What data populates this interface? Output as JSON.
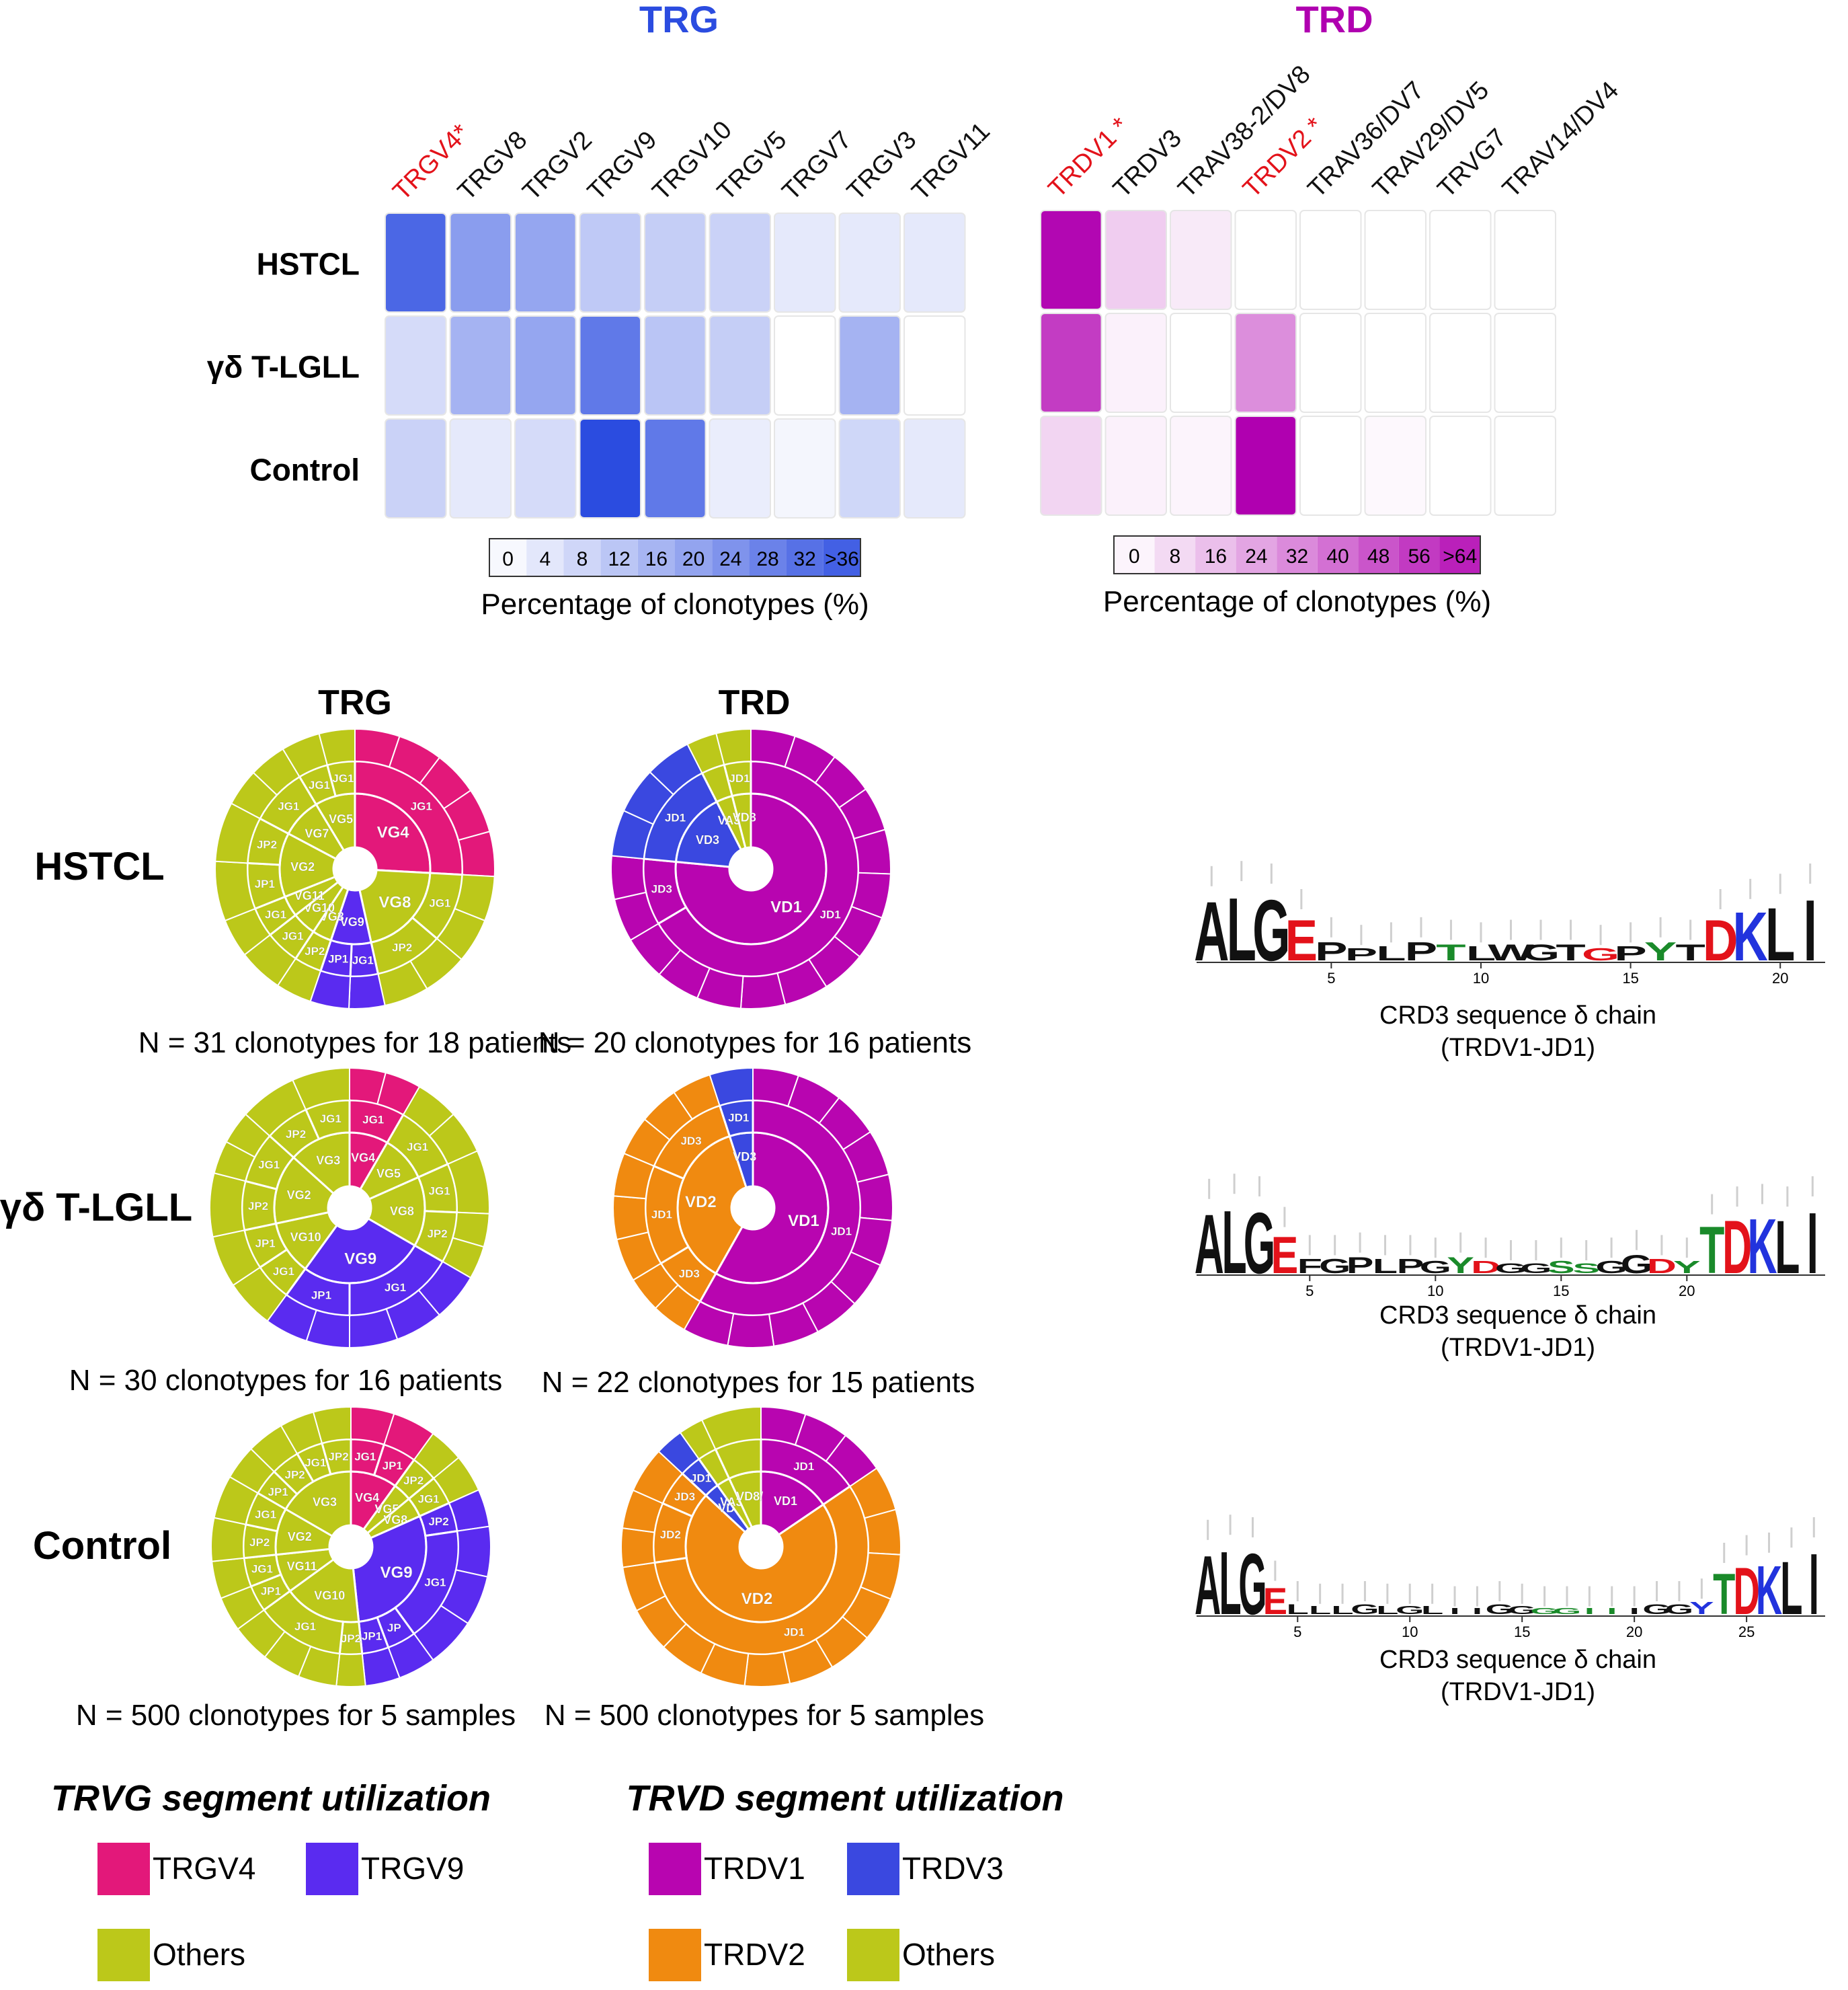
{
  "colors": {
    "trg_accent": "#2b4ce0",
    "trd_accent": "#b000b0",
    "highlight_label": "#e3121a",
    "TRGV4": "#e3187a",
    "TRGV9": "#5a2bf0",
    "TRDV1": "#b805b0",
    "TRDV2": "#f08a10",
    "TRDV3": "#3a48e0",
    "Others": "#bcc81a"
  },
  "heatmaps": [
    {
      "title": "TRG",
      "rows": [
        "HSTCL",
        "γδ T-LGLL",
        "Control"
      ],
      "columns": [
        "TRGV4*",
        "TRGV8",
        "TRGV2",
        "TRGV9",
        "TRGV10",
        "TRGV5",
        "TRGV7",
        "TRGV3",
        "TRGV11"
      ],
      "highlight_columns": [
        0
      ],
      "values": [
        [
          34,
          22,
          20,
          12,
          11,
          10,
          5,
          5,
          5
        ],
        [
          8,
          17,
          20,
          30,
          13,
          11,
          0,
          17,
          0
        ],
        [
          10,
          5,
          8,
          40,
          30,
          4,
          2,
          9,
          5
        ]
      ],
      "scale_max": 40,
      "legend_ticks": [
        "0",
        "4",
        "8",
        "12",
        "16",
        "20",
        "24",
        "28",
        "32",
        ">36"
      ],
      "legend_caption": "Percentage of clonotypes (%)"
    },
    {
      "title": "TRD",
      "rows": [
        "HSTCL",
        "γδ T-LGLL",
        "Control"
      ],
      "columns": [
        "TRDV1 *",
        "TRDV3",
        "TRAV38-2/DV8",
        "TRDV2 *",
        "TRAV36/DV7",
        "TRAV29/DV5",
        "TRVG7",
        "TRAV14/DV4"
      ],
      "highlight_columns": [
        0,
        3
      ],
      "values": [
        [
          70,
          14,
          6,
          0,
          0,
          0,
          0,
          0
        ],
        [
          55,
          4,
          0,
          32,
          0,
          0,
          0,
          0
        ],
        [
          12,
          4,
          3,
          72,
          0,
          2,
          0,
          0
        ]
      ],
      "scale_max": 72,
      "legend_ticks": [
        "0",
        "8",
        "16",
        "24",
        "32",
        "40",
        "48",
        "56",
        ">64"
      ],
      "legend_caption": "Percentage of clonotypes (%)"
    }
  ],
  "chart_data": [
    {
      "type": "heatmap",
      "title": "TRG",
      "rows": [
        "HSTCL",
        "γδ T-LGLL",
        "Control"
      ],
      "columns": [
        "TRGV4",
        "TRGV8",
        "TRGV2",
        "TRGV9",
        "TRGV10",
        "TRGV5",
        "TRGV7",
        "TRGV3",
        "TRGV11"
      ],
      "unit": "Percentage of clonotypes (%)",
      "range": [
        0,
        36
      ]
    },
    {
      "type": "heatmap",
      "title": "TRD",
      "rows": [
        "HSTCL",
        "γδ T-LGLL",
        "Control"
      ],
      "columns": [
        "TRDV1",
        "TRDV3",
        "TRAV38-2/DV8",
        "TRDV2",
        "TRAV36/DV7",
        "TRAV29/DV5",
        "TRVG7",
        "TRAV14/DV4"
      ],
      "unit": "Percentage of clonotypes (%)",
      "range": [
        0,
        64
      ]
    },
    {
      "type": "pie",
      "title": "Segment utilization sunbursts",
      "groups": [
        "HSTCL",
        "γδ T-LGLL",
        "Control"
      ],
      "panels": [
        "TRG",
        "TRD"
      ]
    }
  ],
  "sunburst_headers": {
    "trg": "TRG",
    "trd": "TRD"
  },
  "row_labels": [
    "HSTCL",
    "γδ T-LGLL",
    "Control"
  ],
  "sunbursts": [
    {
      "id": "trg-hstcl",
      "caption": "N = 31 clonotypes for 18 patients",
      "segments": [
        {
          "label": "VG4",
          "color": "TRGV4",
          "value": 7.5,
          "children": [
            {
              "label": "JG1",
              "value": 7.5
            }
          ]
        },
        {
          "label": "VG8",
          "color": "Others",
          "value": 6,
          "children": [
            {
              "label": "JG1",
              "value": 3
            },
            {
              "label": "JP2",
              "value": 3
            }
          ]
        },
        {
          "label": "VG9",
          "color": "TRGV9",
          "value": 2.5,
          "children": [
            {
              "label": "JG1",
              "value": 1.2
            },
            {
              "label": "JP1",
              "value": 1.3
            }
          ]
        },
        {
          "label": "VG3",
          "color": "Others",
          "value": 1.2,
          "children": [
            {
              "label": "JP2",
              "value": 1.2
            }
          ]
        },
        {
          "label": "VG10",
          "color": "Others",
          "value": 1.5,
          "children": [
            {
              "label": "JG1",
              "value": 1.5
            }
          ]
        },
        {
          "label": "VG11",
          "color": "Others",
          "value": 1.3,
          "children": [
            {
              "label": "JG1",
              "value": 1.3
            }
          ]
        },
        {
          "label": "VG2",
          "color": "Others",
          "value": 4,
          "children": [
            {
              "label": "JP1",
              "value": 2
            },
            {
              "label": "JP2",
              "value": 2
            }
          ]
        },
        {
          "label": "VG7",
          "color": "Others",
          "value": 2.5,
          "children": [
            {
              "label": "JG1",
              "value": 2.5
            }
          ]
        },
        {
          "label": "VG5",
          "color": "Others",
          "value": 2.5,
          "children": [
            {
              "label": "JG1",
              "value": 1.3
            },
            {
              "label": "JG1",
              "value": 1.2
            }
          ]
        }
      ]
    },
    {
      "id": "trd-hstcl",
      "caption": "N = 20 clonotypes for 16 patients",
      "segments": [
        {
          "label": "VD1",
          "color": "TRDV1",
          "value": 15.3,
          "children": [
            {
              "label": "JD1",
              "value": 13.3
            },
            {
              "label": "JD3",
              "value": 2
            }
          ]
        },
        {
          "label": "VD3",
          "color": "TRDV3",
          "value": 3.2,
          "children": [
            {
              "label": "JD1",
              "value": 3.2
            }
          ]
        },
        {
          "label": "VA38",
          "color": "Others",
          "value": 0.7,
          "children": [
            {
              "label": "",
              "value": 0.7
            }
          ]
        },
        {
          "label": "VD8",
          "color": "Others",
          "value": 0.8,
          "children": [
            {
              "label": "JD1",
              "value": 0.8
            }
          ]
        }
      ]
    },
    {
      "id": "trg-lgll",
      "caption": "N = 30 clonotypes for 16 patients",
      "segments": [
        {
          "label": "VG4",
          "color": "TRGV4",
          "value": 2.5,
          "children": [
            {
              "label": "JG1",
              "value": 2.5
            }
          ]
        },
        {
          "label": "VG5",
          "color": "Others",
          "value": 3,
          "children": [
            {
              "label": "JG1",
              "value": 3
            }
          ]
        },
        {
          "label": "VG8",
          "color": "Others",
          "value": 4.5,
          "children": [
            {
              "label": "JG1",
              "value": 2.2
            },
            {
              "label": "JP2",
              "value": 2.3
            }
          ]
        },
        {
          "label": "VG9",
          "color": "TRGV9",
          "value": 8,
          "children": [
            {
              "label": "JG1",
              "value": 5
            },
            {
              "label": "JP1",
              "value": 3
            }
          ]
        },
        {
          "label": "VG10",
          "color": "Others",
          "value": 3.5,
          "children": [
            {
              "label": "JG1",
              "value": 1.7
            },
            {
              "label": "JP1",
              "value": 1.8
            }
          ]
        },
        {
          "label": "VG2",
          "color": "Others",
          "value": 4.5,
          "children": [
            {
              "label": "JP2",
              "value": 2.2
            },
            {
              "label": "JG1",
              "value": 2.3
            }
          ]
        },
        {
          "label": "VG3",
          "color": "Others",
          "value": 4,
          "children": [
            {
              "label": "JP2",
              "value": 2
            },
            {
              "label": "JG1",
              "value": 2
            }
          ]
        }
      ]
    },
    {
      "id": "trd-lgll",
      "caption": "N = 22 clonotypes for 15 patients",
      "segments": [
        {
          "label": "VD1",
          "color": "TRDV1",
          "value": 12.8,
          "children": [
            {
              "label": "JD1",
              "value": 12.8
            }
          ]
        },
        {
          "label": "VD2",
          "color": "TRDV2",
          "value": 8.1,
          "children": [
            {
              "label": "JD3",
              "value": 1.8
            },
            {
              "label": "JD1",
              "value": 3.3
            },
            {
              "label": "JD3",
              "value": 3
            }
          ]
        },
        {
          "label": "VD3",
          "color": "TRDV3",
          "value": 1.1,
          "children": [
            {
              "label": "JD1",
              "value": 1.1
            }
          ]
        }
      ]
    },
    {
      "id": "trg-control",
      "caption": "N = 500 clonotypes for 5 samples",
      "segments": [
        {
          "label": "VG4",
          "color": "TRGV4",
          "value": 3,
          "children": [
            {
              "label": "JG1",
              "value": 1.5
            },
            {
              "label": "JP1",
              "value": 1.5
            }
          ]
        },
        {
          "label": "VG5",
          "color": "Others",
          "value": 1.2,
          "children": [
            {
              "label": "JP2",
              "value": 1.2
            }
          ]
        },
        {
          "label": "VG8",
          "color": "Others",
          "value": 1.3,
          "children": [
            {
              "label": "JG1",
              "value": 1.3
            }
          ]
        },
        {
          "label": "VG9",
          "color": "TRGV9",
          "value": 9,
          "children": [
            {
              "label": "JP2",
              "value": 1.3
            },
            {
              "label": "JG1",
              "value": 5.2
            },
            {
              "label": "JP",
              "value": 1.3
            },
            {
              "label": "JP1",
              "value": 1.2
            }
          ]
        },
        {
          "label": "VG10",
          "color": "Others",
          "value": 5,
          "children": [
            {
              "label": "JP2",
              "value": 1
            },
            {
              "label": "JG1",
              "value": 4
            }
          ]
        },
        {
          "label": "VG11",
          "color": "Others",
          "value": 2.5,
          "children": [
            {
              "label": "JP1",
              "value": 1.2
            },
            {
              "label": "JG1",
              "value": 1.3
            }
          ]
        },
        {
          "label": "VG2",
          "color": "Others",
          "value": 3,
          "children": [
            {
              "label": "JP2",
              "value": 1.5
            },
            {
              "label": "JG1",
              "value": 1.5
            }
          ]
        },
        {
          "label": "VG3",
          "color": "Others",
          "value": 5,
          "children": [
            {
              "label": "JP1",
              "value": 1.2
            },
            {
              "label": "JP2",
              "value": 1.3
            },
            {
              "label": "JG1",
              "value": 1.2
            },
            {
              "label": "JP2",
              "value": 1.3
            }
          ]
        }
      ]
    },
    {
      "id": "trd-control",
      "caption": "N = 500 clonotypes for 5 samples",
      "segments": [
        {
          "label": "VD1",
          "color": "TRDV1",
          "value": 3.8,
          "children": [
            {
              "label": "JD1",
              "value": 3.8
            }
          ]
        },
        {
          "label": "VD2",
          "color": "TRDV2",
          "value": 17.5,
          "children": [
            {
              "label": "JD1",
              "value": 14
            },
            {
              "label": "JD2",
              "value": 2.2
            },
            {
              "label": "JD3",
              "value": 1.3
            }
          ]
        },
        {
          "label": "VD",
          "color": "TRDV3",
          "value": 0.8,
          "children": [
            {
              "label": "JD1",
              "value": 0.8
            }
          ]
        },
        {
          "label": "VA38",
          "color": "Others",
          "value": 0.7,
          "children": [
            {
              "label": "",
              "value": 0.7
            }
          ]
        },
        {
          "label": "VD8/",
          "color": "Others",
          "value": 1.7,
          "children": [
            {
              "label": "",
              "value": 1.7
            }
          ]
        }
      ]
    }
  ],
  "logos": [
    {
      "caption_line1": "CRD3 sequence δ chain",
      "caption_line2": "(TRDV1-JD1)",
      "sequence": [
        "A",
        "L",
        "G",
        "E",
        "P",
        "P",
        "L",
        "P",
        "T",
        "L",
        "W",
        "G",
        "T",
        "G",
        "P",
        "Y",
        "T",
        "D",
        "K",
        "L",
        "I"
      ],
      "residue_colors": [
        "#111",
        "#111",
        "#111",
        "#e3121a",
        "#111",
        "#111",
        "#111",
        "#111",
        "#1a8a2a",
        "#111",
        "#111",
        "#111",
        "#111",
        "#e3121a",
        "#111",
        "#1a8a2a",
        "#111",
        "#e3121a",
        "#2233dd",
        "#111",
        "#111"
      ],
      "heights": [
        2.9,
        3.1,
        3.0,
        2.0,
        0.9,
        0.6,
        0.7,
        0.9,
        0.8,
        0.7,
        0.8,
        0.8,
        0.8,
        0.6,
        0.7,
        0.9,
        0.8,
        2.0,
        2.4,
        2.6,
        3.0
      ],
      "ticks": [
        "5",
        "10",
        "15",
        "20"
      ]
    },
    {
      "caption_line1": "CRD3 sequence δ chain",
      "caption_line2": "(TRDV1-JD1)",
      "sequence": [
        "A",
        "L",
        "G",
        "E",
        "F",
        "G",
        "P",
        "L",
        "P",
        "G",
        "Y",
        "D",
        "G",
        "G",
        "S",
        "S",
        "G",
        "G",
        "D",
        "Y",
        "T",
        "D",
        "K",
        "L",
        "I"
      ],
      "residue_colors": [
        "#111",
        "#111",
        "#111",
        "#e3121a",
        "#111",
        "#111",
        "#111",
        "#111",
        "#111",
        "#111",
        "#1a8a2a",
        "#e3121a",
        "#111",
        "#111",
        "#1a8a2a",
        "#1a8a2a",
        "#111",
        "#111",
        "#e3121a",
        "#1a8a2a",
        "#1a8a2a",
        "#e3121a",
        "#2233dd",
        "#111",
        "#111"
      ],
      "heights": [
        2.9,
        3.1,
        3.0,
        1.8,
        0.7,
        0.7,
        0.8,
        0.7,
        0.7,
        0.6,
        0.8,
        0.6,
        0.5,
        0.5,
        0.6,
        0.5,
        0.6,
        0.9,
        0.7,
        0.6,
        2.3,
        2.6,
        2.7,
        2.6,
        3.0
      ],
      "ticks": [
        "5",
        "10",
        "15",
        "20"
      ]
    },
    {
      "caption_line1": "CRD3 sequence δ chain",
      "caption_line2": "(TRDV1-JD1)",
      "sequence": [
        "A",
        "L",
        "G",
        "E",
        "L",
        "L",
        "L",
        "G",
        "L",
        "G",
        "L",
        "I",
        "I",
        "G",
        "G",
        "G",
        "G",
        "I",
        "I",
        "I",
        "G",
        "G",
        "Y",
        "T",
        "D",
        "K",
        "L",
        "I"
      ],
      "residue_colors": [
        "#111",
        "#111",
        "#111",
        "#e3121a",
        "#111",
        "#111",
        "#111",
        "#111",
        "#111",
        "#111",
        "#111",
        "#111",
        "#111",
        "#111",
        "#111",
        "#1a8a2a",
        "#1a8a2a",
        "#1a8a2a",
        "#1a8a2a",
        "#111",
        "#111",
        "#111",
        "#2233dd",
        "#1a8a2a",
        "#e3121a",
        "#2233dd",
        "#111",
        "#111"
      ],
      "heights": [
        2.9,
        3.1,
        3.0,
        1.3,
        0.5,
        0.4,
        0.4,
        0.5,
        0.4,
        0.4,
        0.4,
        0.3,
        0.3,
        0.5,
        0.4,
        0.3,
        0.3,
        0.3,
        0.3,
        0.3,
        0.5,
        0.5,
        0.6,
        2.0,
        2.3,
        2.4,
        2.6,
        3.0
      ],
      "ticks": [
        "5",
        "10",
        "15",
        "20",
        "25"
      ]
    }
  ],
  "legends": [
    {
      "title": "TRVG segment utilization",
      "items": [
        {
          "label": "TRGV4",
          "color": "TRGV4"
        },
        {
          "label": "TRGV9",
          "color": "TRGV9"
        },
        {
          "label": "Others",
          "color": "Others"
        }
      ]
    },
    {
      "title": "TRVD segment utilization",
      "items": [
        {
          "label": "TRDV1",
          "color": "TRDV1"
        },
        {
          "label": "TRDV3",
          "color": "TRDV3"
        },
        {
          "label": "TRDV2",
          "color": "TRDV2"
        },
        {
          "label": "Others",
          "color": "Others"
        }
      ]
    }
  ]
}
